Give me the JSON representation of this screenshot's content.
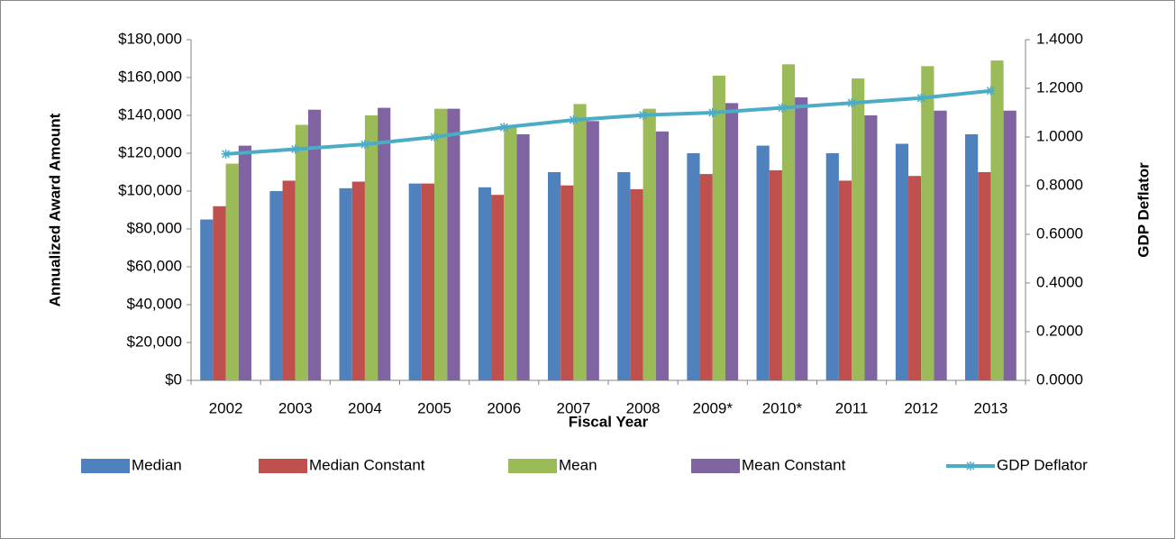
{
  "chart_data": {
    "type": "bar-line",
    "x_label": "Fiscal Year",
    "y_label": "Annualized Award Amount",
    "y2_label": "GDP Deflator",
    "categories": [
      "2002",
      "2003",
      "2004",
      "2005",
      "2006",
      "2007",
      "2008",
      "2009*",
      "2010*",
      "2011",
      "2012",
      "2013"
    ],
    "series": [
      {
        "name": "Median",
        "color": "#4f81bd",
        "type": "bar",
        "values": [
          85000,
          100000,
          101500,
          104000,
          102000,
          110000,
          110000,
          120000,
          124000,
          120000,
          125000,
          130000
        ]
      },
      {
        "name": "Median Constant",
        "color": "#c0504d",
        "type": "bar",
        "values": [
          92000,
          105500,
          105000,
          104000,
          98000,
          103000,
          101000,
          109000,
          111000,
          105500,
          108000,
          110000
        ]
      },
      {
        "name": "Mean",
        "color": "#9bbb59",
        "type": "bar",
        "values": [
          114500,
          135000,
          140000,
          143500,
          134000,
          146000,
          143500,
          161000,
          167000,
          159500,
          166000,
          169000
        ]
      },
      {
        "name": "Mean Constant",
        "color": "#8064a2",
        "type": "bar",
        "values": [
          124000,
          143000,
          144000,
          143500,
          130000,
          137000,
          131500,
          146500,
          149500,
          140000,
          142500,
          142500
        ]
      },
      {
        "name": "GDP Deflator",
        "color": "#4bacc6",
        "type": "line",
        "axis": "y2",
        "values": [
          0.93,
          0.95,
          0.97,
          1.0,
          1.04,
          1.07,
          1.09,
          1.1,
          1.12,
          1.14,
          1.16,
          1.19
        ]
      }
    ],
    "ylim": [
      0,
      180000
    ],
    "yticks": [
      {
        "value": 0,
        "label": "$0"
      },
      {
        "value": 20000,
        "label": "$20,000"
      },
      {
        "value": 40000,
        "label": "$40,000"
      },
      {
        "value": 60000,
        "label": "$60,000"
      },
      {
        "value": 80000,
        "label": "$80,000"
      },
      {
        "value": 100000,
        "label": "$100,000"
      },
      {
        "value": 120000,
        "label": "$120,000"
      },
      {
        "value": 140000,
        "label": "$140,000"
      },
      {
        "value": 160000,
        "label": "$160,000"
      },
      {
        "value": 180000,
        "label": "$180,000"
      }
    ],
    "y2lim": [
      0,
      1.4
    ],
    "y2ticks": [
      {
        "value": 0,
        "label": "0.0000"
      },
      {
        "value": 0.2,
        "label": "0.2000"
      },
      {
        "value": 0.4,
        "label": "0.4000"
      },
      {
        "value": 0.6,
        "label": "0.6000"
      },
      {
        "value": 0.8,
        "label": "0.8000"
      },
      {
        "value": 1.0,
        "label": "1.0000"
      },
      {
        "value": 1.2,
        "label": "1.2000"
      },
      {
        "value": 1.4,
        "label": "1.4000"
      }
    ],
    "legend": "bottom"
  }
}
